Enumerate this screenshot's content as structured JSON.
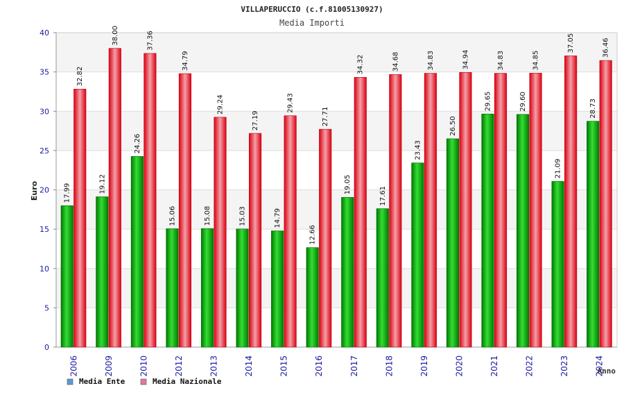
{
  "chart_data": {
    "type": "bar",
    "title": "VILLAPERUCCIO (c.f.81005130927)",
    "subtitle": "Media Importi",
    "xlabel": "Anno",
    "ylabel": "Euro",
    "ylim": [
      0,
      40
    ],
    "yticks": [
      0,
      5,
      10,
      15,
      20,
      25,
      30,
      35,
      40
    ],
    "grid": true,
    "legend_position": "bottom-left",
    "categories": [
      "2006",
      "2009",
      "2010",
      "2012",
      "2013",
      "2014",
      "2015",
      "2016",
      "2017",
      "2018",
      "2019",
      "2020",
      "2021",
      "2022",
      "2023",
      "2024"
    ],
    "series": [
      {
        "name": "Media Ente",
        "color": "#22bb22",
        "legend_color": "#5b9bd5",
        "values": [
          17.99,
          19.12,
          24.26,
          15.06,
          15.08,
          15.03,
          14.79,
          12.66,
          19.05,
          17.61,
          23.43,
          26.5,
          29.65,
          29.6,
          21.09,
          28.73
        ],
        "labels": [
          "17.99",
          "19.12",
          "24.26",
          "15.06",
          "15.08",
          "15.03",
          "14.79",
          "12.66",
          "19.05",
          "17.61",
          "23.43",
          "26.50",
          "29.65",
          "29.60",
          "21.09",
          "28.73"
        ]
      },
      {
        "name": "Media Nazionale",
        "color": "#ee2233",
        "legend_color": "#e07aa0",
        "values": [
          32.82,
          38.0,
          37.36,
          34.79,
          29.24,
          27.19,
          29.43,
          27.71,
          34.32,
          34.68,
          34.83,
          34.94,
          34.83,
          34.85,
          37.05,
          36.46
        ],
        "labels": [
          "32.82",
          "38.00",
          "37.36",
          "34.79",
          "29.24",
          "27.19",
          "29.43",
          "27.71",
          "34.32",
          "34.68",
          "34.83",
          "34.94",
          "34.83",
          "34.85",
          "37.05",
          "36.46"
        ]
      }
    ]
  }
}
